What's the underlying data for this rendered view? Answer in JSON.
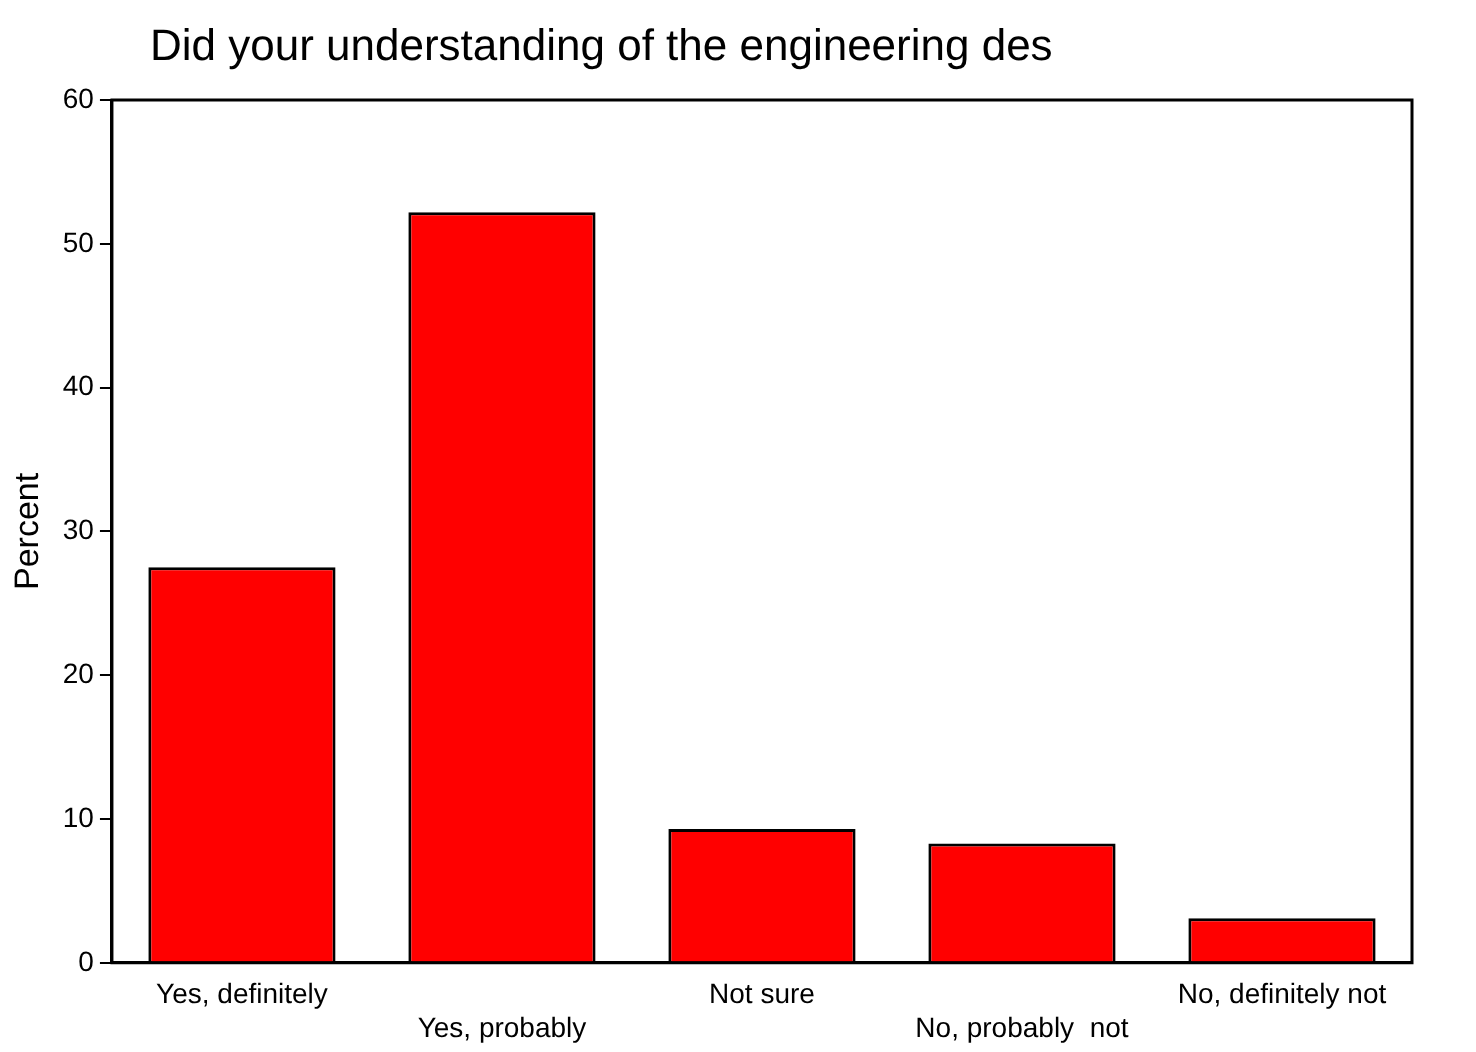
{
  "chart_data": {
    "type": "bar",
    "title": "Did your understanding of the engineering des",
    "ylabel": "Percent",
    "categories": [
      "Yes, definitely",
      "Yes, probably",
      "Not sure",
      "No, probably  not",
      "No, definitely not"
    ],
    "values": [
      27.5,
      52.2,
      9.3,
      8.3,
      3.1
    ],
    "color": "#ff0000",
    "ylim": [
      0,
      60
    ],
    "yticks": [
      0,
      10,
      20,
      30,
      40,
      50,
      60
    ],
    "grid": false,
    "legend": false
  }
}
